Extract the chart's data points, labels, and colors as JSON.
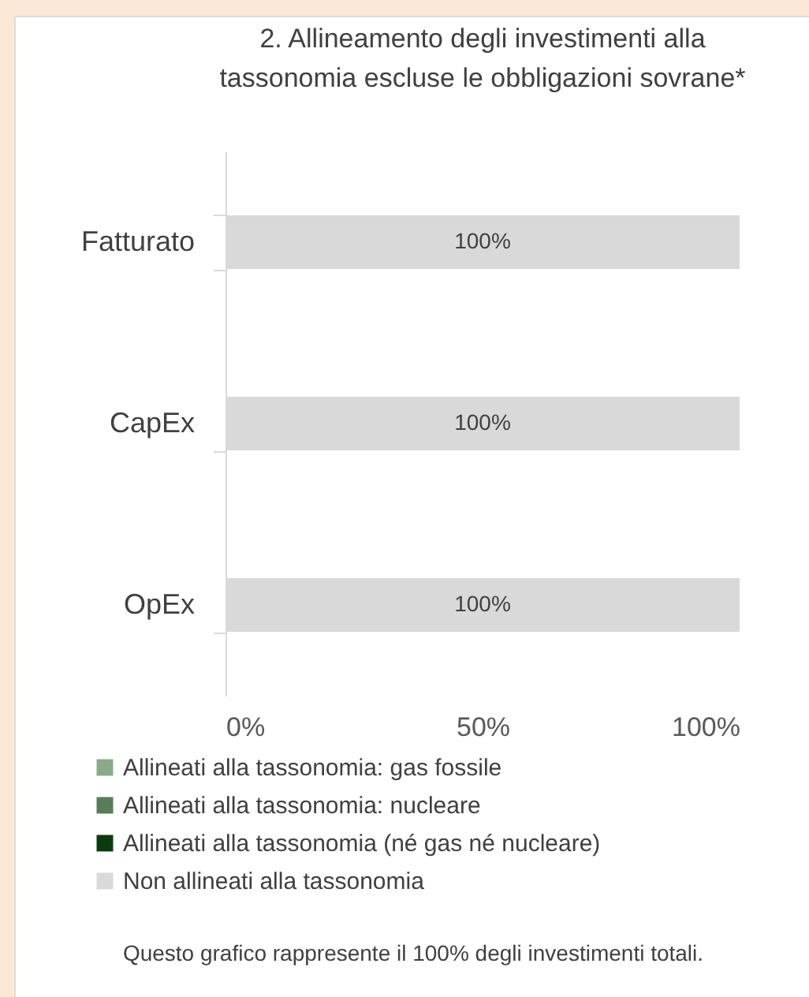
{
  "chart_data": {
    "type": "bar",
    "orientation": "horizontal",
    "stacked": true,
    "title": "2. Allineamento degli investimenti alla tassonomia escluse le obbligazioni sovrane*",
    "categories": [
      "Fatturato",
      "CapEx",
      "OpEx"
    ],
    "series": [
      {
        "name": "Allineati alla tassonomia: gas fossile",
        "color": "#8aaa8a",
        "values": [
          0,
          0,
          0
        ]
      },
      {
        "name": "Allineati alla tassonomia: nucleare",
        "color": "#587d5a",
        "values": [
          0,
          0,
          0
        ]
      },
      {
        "name": "Allineati alla tassonomia (né gas né nucleare)",
        "color": "#0c3a10",
        "values": [
          0,
          0,
          0
        ]
      },
      {
        "name": "Non allineati alla tassonomia",
        "color": "#d9d9d9",
        "values": [
          100,
          100,
          100
        ],
        "value_labels": [
          "100%",
          "100%",
          "100%"
        ]
      }
    ],
    "xlim": [
      0,
      100
    ],
    "xticks": [
      {
        "value": 0,
        "label": "0%"
      },
      {
        "value": 50,
        "label": "50%"
      },
      {
        "value": 100,
        "label": "100%"
      }
    ],
    "grid": false,
    "legend": "bottom",
    "annotations": [
      "Questo grafico rappresente il 100% degli investimenti totali."
    ]
  }
}
